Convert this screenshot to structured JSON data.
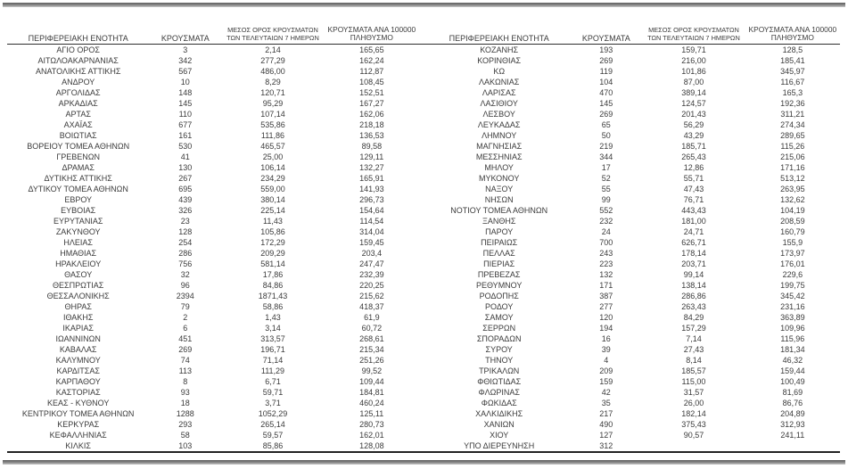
{
  "styles": {
    "background": "#ffffff",
    "text_color": "#3b3b3b",
    "divider_color": "#8a8a8a",
    "line_color": "#2e2e2e"
  },
  "headers": {
    "region": "ΠΕΡΙΦΕΡΕΙΑΚΗ ΕΝΟΤΗΤΑ",
    "cases": "ΚΡΟΥΣΜΑΤΑ",
    "avg_line1": "ΜΕΣΟΣ ΟΡΟΣ ΚΡΟΥΣΜΑΤΩΝ",
    "avg_line2": "ΤΩΝ ΤΕΛΕΥΤΑΙΩΝ 7 ΗΜΕΡΩΝ",
    "per_line1": "ΚΡΟΥΣΜΑΤΑ ΑΝΑ 100000",
    "per_line2": "ΠΛΗΘΥΣΜΟ"
  },
  "tables": [
    {
      "rows": [
        [
          "ΑΓΙΟ ΟΡΟΣ",
          "3",
          "2,14",
          "165,65"
        ],
        [
          "ΑΙΤΩΛΟΑΚΑΡΝΑΝΙΑΣ",
          "342",
          "277,29",
          "162,24"
        ],
        [
          "ΑΝΑΤΟΛΙΚΗΣ ΑΤΤΙΚΗΣ",
          "567",
          "486,00",
          "112,87"
        ],
        [
          "ΑΝΔΡΟΥ",
          "10",
          "8,29",
          "108,45"
        ],
        [
          "ΑΡΓΟΛΙΔΑΣ",
          "148",
          "120,71",
          "152,51"
        ],
        [
          "ΑΡΚΑΔΙΑΣ",
          "145",
          "95,29",
          "167,27"
        ],
        [
          "ΑΡΤΑΣ",
          "110",
          "107,14",
          "162,06"
        ],
        [
          "ΑΧΑΪΑΣ",
          "677",
          "535,86",
          "218,18"
        ],
        [
          "ΒΟΙΩΤΙΑΣ",
          "161",
          "111,86",
          "136,53"
        ],
        [
          "ΒΟΡΕΙΟΥ ΤΟΜΕΑ ΑΘΗΝΩΝ",
          "530",
          "465,57",
          "89,58"
        ],
        [
          "ΓΡΕΒΕΝΩΝ",
          "41",
          "25,00",
          "129,11"
        ],
        [
          "ΔΡΑΜΑΣ",
          "130",
          "106,14",
          "132,27"
        ],
        [
          "ΔΥΤΙΚΗΣ ΑΤΤΙΚΗΣ",
          "267",
          "234,29",
          "165,91"
        ],
        [
          "ΔΥΤΙΚΟΥ ΤΟΜΕΑ ΑΘΗΝΩΝ",
          "695",
          "559,00",
          "141,93"
        ],
        [
          "ΕΒΡΟΥ",
          "439",
          "380,14",
          "296,73"
        ],
        [
          "ΕΥΒΟΙΑΣ",
          "326",
          "225,14",
          "154,64"
        ],
        [
          "ΕΥΡΥΤΑΝΙΑΣ",
          "23",
          "11,43",
          "114,54"
        ],
        [
          "ΖΑΚΥΝΘΟΥ",
          "128",
          "105,86",
          "314,04"
        ],
        [
          "ΗΛΕΙΑΣ",
          "254",
          "172,29",
          "159,45"
        ],
        [
          "ΗΜΑΘΙΑΣ",
          "286",
          "209,29",
          "203,4"
        ],
        [
          "ΗΡΑΚΛΕΙΟΥ",
          "756",
          "581,14",
          "247,47"
        ],
        [
          "ΘΑΣΟΥ",
          "32",
          "17,86",
          "232,39"
        ],
        [
          "ΘΕΣΠΡΩΤΙΑΣ",
          "96",
          "84,86",
          "220,25"
        ],
        [
          "ΘΕΣΣΑΛΟΝΙΚΗΣ",
          "2394",
          "1871,43",
          "215,62"
        ],
        [
          "ΘΗΡΑΣ",
          "79",
          "58,86",
          "418,37"
        ],
        [
          "ΙΘΑΚΗΣ",
          "2",
          "1,43",
          "61,9"
        ],
        [
          "ΙΚΑΡΙΑΣ",
          "6",
          "3,14",
          "60,72"
        ],
        [
          "ΙΩΑΝΝΙΝΩΝ",
          "451",
          "313,57",
          "268,61"
        ],
        [
          "ΚΑΒΑΛΑΣ",
          "269",
          "196,71",
          "215,34"
        ],
        [
          "ΚΑΛΥΜΝΟΥ",
          "74",
          "71,14",
          "251,26"
        ],
        [
          "ΚΑΡΔΙΤΣΑΣ",
          "113",
          "111,29",
          "99,52"
        ],
        [
          "ΚΑΡΠΑΘΟΥ",
          "8",
          "6,71",
          "109,44"
        ],
        [
          "ΚΑΣΤΟΡΙΑΣ",
          "93",
          "59,71",
          "184,81"
        ],
        [
          "ΚΕΑΣ - ΚΥΘΝΟΥ",
          "18",
          "3,71",
          "460,24"
        ],
        [
          "ΚΕΝΤΡΙΚΟΥ ΤΟΜΕΑ ΑΘΗΝΩΝ",
          "1288",
          "1052,29",
          "125,11"
        ],
        [
          "ΚΕΡΚΥΡΑΣ",
          "293",
          "265,14",
          "280,73"
        ],
        [
          "ΚΕΦΑΛΛΗΝΙΑΣ",
          "58",
          "59,57",
          "162,01"
        ],
        [
          "ΚΙΛΚΙΣ",
          "103",
          "85,86",
          "128,08"
        ]
      ]
    },
    {
      "rows": [
        [
          "ΚΟΖΑΝΗΣ",
          "193",
          "159,71",
          "128,5"
        ],
        [
          "ΚΟΡΙΝΘΙΑΣ",
          "269",
          "216,00",
          "185,41"
        ],
        [
          "ΚΩ",
          "119",
          "101,86",
          "345,97"
        ],
        [
          "ΛΑΚΩΝΙΑΣ",
          "104",
          "87,00",
          "116,67"
        ],
        [
          "ΛΑΡΙΣΑΣ",
          "470",
          "389,14",
          "165,3"
        ],
        [
          "ΛΑΣΙΘΙΟΥ",
          "145",
          "124,57",
          "192,36"
        ],
        [
          "ΛΕΣΒΟΥ",
          "269",
          "201,43",
          "311,21"
        ],
        [
          "ΛΕΥΚΑΔΑΣ",
          "65",
          "56,29",
          "274,34"
        ],
        [
          "ΛΗΜΝΟΥ",
          "50",
          "43,29",
          "289,65"
        ],
        [
          "ΜΑΓΝΗΣΙΑΣ",
          "219",
          "185,71",
          "115,26"
        ],
        [
          "ΜΕΣΣΗΝΙΑΣ",
          "344",
          "265,43",
          "215,06"
        ],
        [
          "ΜΗΛΟΥ",
          "17",
          "12,86",
          "171,16"
        ],
        [
          "ΜΥΚΟΝΟΥ",
          "52",
          "55,71",
          "513,12"
        ],
        [
          "ΝΑΞΟΥ",
          "55",
          "47,43",
          "263,95"
        ],
        [
          "ΝΗΣΩΝ",
          "99",
          "76,71",
          "132,62"
        ],
        [
          "ΝΟΤΙΟΥ ΤΟΜΕΑ ΑΘΗΝΩΝ",
          "552",
          "443,43",
          "104,19"
        ],
        [
          "ΞΑΝΘΗΣ",
          "232",
          "181,00",
          "208,59"
        ],
        [
          "ΠΑΡΟΥ",
          "24",
          "24,71",
          "160,79"
        ],
        [
          "ΠΕΙΡΑΙΩΣ",
          "700",
          "626,71",
          "155,9"
        ],
        [
          "ΠΕΛΛΑΣ",
          "243",
          "178,14",
          "173,97"
        ],
        [
          "ΠΙΕΡΙΑΣ",
          "223",
          "203,71",
          "176,01"
        ],
        [
          "ΠΡΕΒΕΖΑΣ",
          "132",
          "99,14",
          "229,6"
        ],
        [
          "ΡΕΘΥΜΝΟΥ",
          "171",
          "138,14",
          "199,75"
        ],
        [
          "ΡΟΔΟΠΗΣ",
          "387",
          "286,86",
          "345,42"
        ],
        [
          "ΡΟΔΟΥ",
          "277",
          "263,43",
          "231,16"
        ],
        [
          "ΣΑΜΟΥ",
          "120",
          "84,29",
          "363,89"
        ],
        [
          "ΣΕΡΡΩΝ",
          "194",
          "157,29",
          "109,96"
        ],
        [
          "ΣΠΟΡΑΔΩΝ",
          "16",
          "7,14",
          "115,96"
        ],
        [
          "ΣΥΡΟΥ",
          "39",
          "27,43",
          "181,34"
        ],
        [
          "ΤΗΝΟΥ",
          "4",
          "8,14",
          "46,32"
        ],
        [
          "ΤΡΙΚΑΛΩΝ",
          "209",
          "185,57",
          "159,44"
        ],
        [
          "ΦΘΙΩΤΙΔΑΣ",
          "159",
          "115,00",
          "100,49"
        ],
        [
          "ΦΛΩΡΙΝΑΣ",
          "42",
          "31,57",
          "81,69"
        ],
        [
          "ΦΩΚΙΔΑΣ",
          "35",
          "26,00",
          "86,76"
        ],
        [
          "ΧΑΛΚΙΔΙΚΗΣ",
          "217",
          "182,14",
          "204,89"
        ],
        [
          "ΧΑΝΙΩΝ",
          "490",
          "375,43",
          "312,93"
        ],
        [
          "ΧΙΟΥ",
          "127",
          "90,57",
          "241,11"
        ],
        [
          "ΥΠΟ ΔΙΕΡΕΥΝΗΣΗ",
          "312",
          "",
          ""
        ]
      ]
    }
  ]
}
